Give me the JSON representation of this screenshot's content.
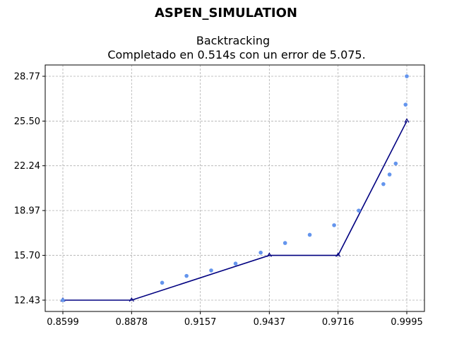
{
  "figure": {
    "suptitle": "ASPEN_SIMULATION"
  },
  "chart_data": {
    "type": "scatter+line",
    "title": "Backtracking",
    "subtitle": "Completado en 0.514s con un error de 5.075.",
    "xlabel": "",
    "ylabel": "",
    "x_ticks": [
      "0.8599",
      "0.8878",
      "0.9157",
      "0.9437",
      "0.9716",
      "0.9995"
    ],
    "y_ticks": [
      "12.43",
      "15.70",
      "18.97",
      "22.24",
      "25.50",
      "28.77"
    ],
    "xlim": [
      0.8599,
      0.9995
    ],
    "ylim": [
      12.43,
      28.77
    ],
    "grid": true,
    "colors": {
      "points": "#6495ED",
      "line": "#000080"
    },
    "series": [
      {
        "kind": "scatter",
        "points": [
          {
            "x": 0.8599,
            "y": 12.43
          },
          {
            "x": 0.9002,
            "y": 13.7
          },
          {
            "x": 0.9101,
            "y": 14.2
          },
          {
            "x": 0.9201,
            "y": 14.6
          },
          {
            "x": 0.93,
            "y": 15.1
          },
          {
            "x": 0.9402,
            "y": 15.9
          },
          {
            "x": 0.9501,
            "y": 16.6
          },
          {
            "x": 0.9601,
            "y": 17.2
          },
          {
            "x": 0.97,
            "y": 17.9
          },
          {
            "x": 0.98,
            "y": 18.97
          },
          {
            "x": 0.99,
            "y": 20.9
          },
          {
            "x": 0.9925,
            "y": 21.6
          },
          {
            "x": 0.995,
            "y": 22.4
          },
          {
            "x": 0.999,
            "y": 26.7
          },
          {
            "x": 0.9995,
            "y": 28.77
          }
        ]
      },
      {
        "kind": "line",
        "points": [
          {
            "x": 0.8599,
            "y": 12.43
          },
          {
            "x": 0.8878,
            "y": 12.43
          },
          {
            "x": 0.9437,
            "y": 15.7
          },
          {
            "x": 0.9716,
            "y": 15.7
          },
          {
            "x": 0.9995,
            "y": 25.5
          }
        ]
      }
    ]
  }
}
